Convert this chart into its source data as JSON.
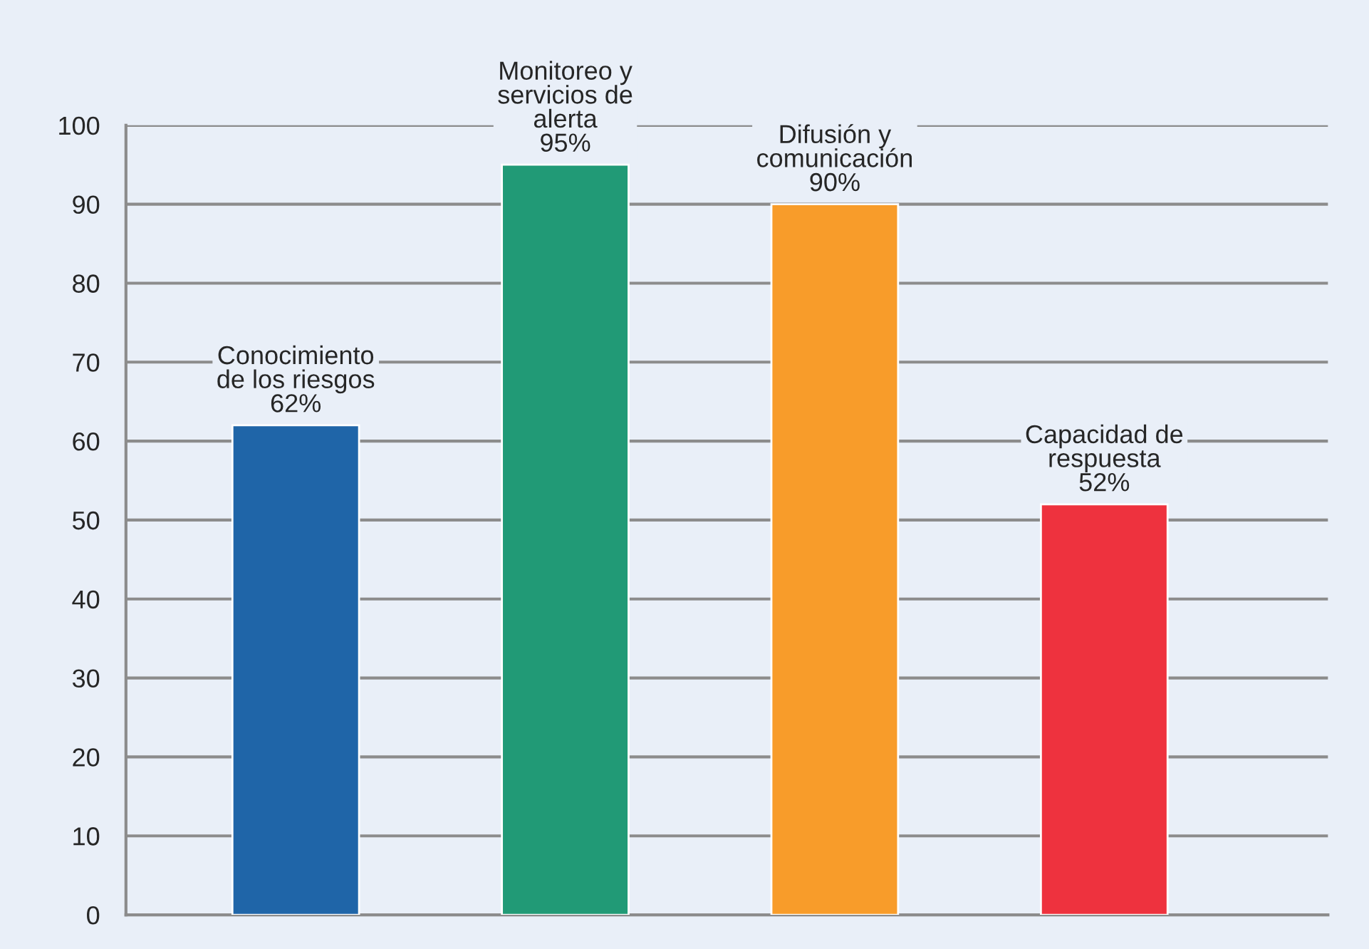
{
  "chart_data": {
    "type": "bar",
    "categories": [
      "Conocimiento\nde los riesgos",
      "Monitoreo y\nservicios de\nalerta",
      "Difusión y\ncomunicación",
      "Capacidad de\nrespuesta"
    ],
    "values": [
      62,
      95,
      90,
      52
    ],
    "colors": [
      "#1f65a8",
      "#219a76",
      "#f89c2a",
      "#ee323e"
    ],
    "value_labels": [
      "62%",
      "95%",
      "90%",
      "52%"
    ],
    "ylim": [
      0,
      100
    ],
    "yticks": [
      0,
      10,
      20,
      30,
      40,
      50,
      60,
      70,
      80,
      90,
      100
    ],
    "grid": "y",
    "legend": false,
    "tick_labels": "y"
  }
}
